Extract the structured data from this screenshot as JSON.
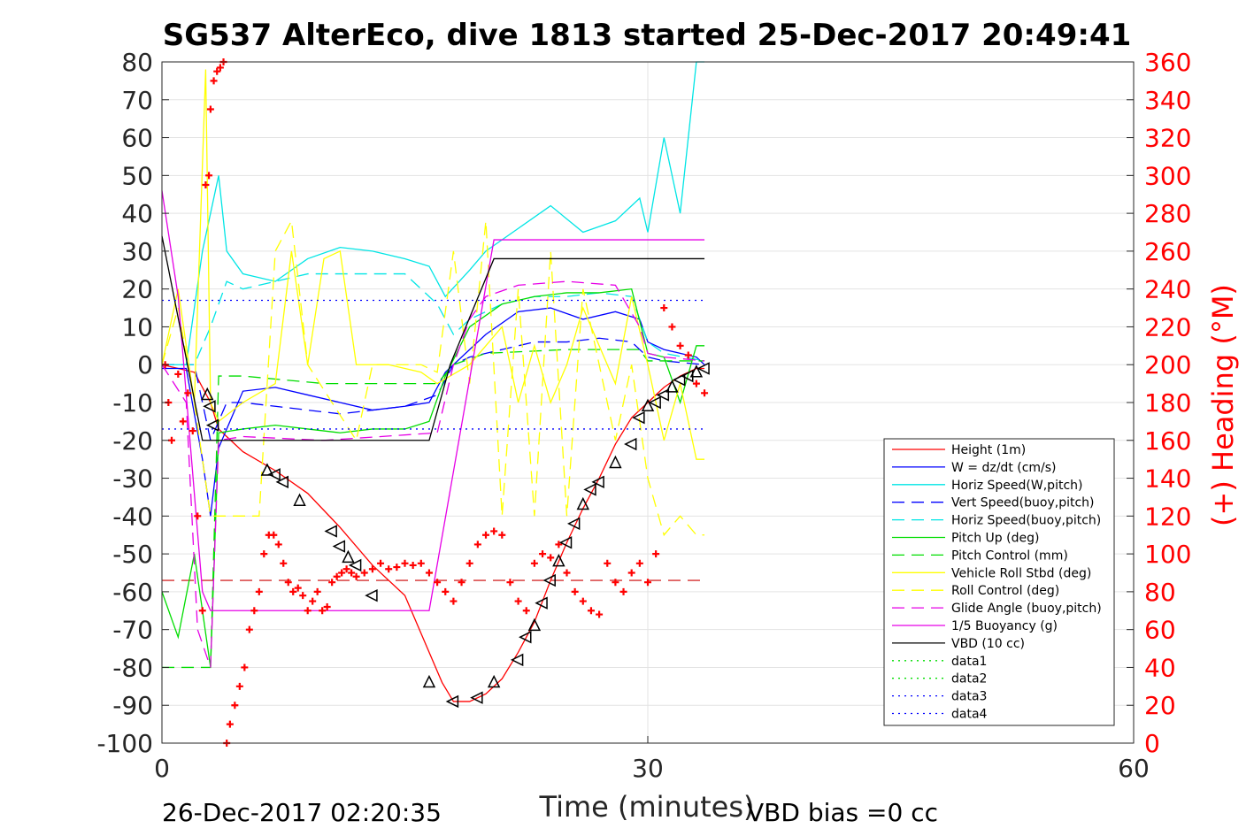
{
  "chart_data": {
    "type": "line",
    "title": "SG537 AlterEco, dive 1813 started 25-Dec-2017 20:49:41",
    "xlabel": "Time (minutes)",
    "ylabel_right": "(+) Heading (°M)",
    "xlim": [
      0,
      60
    ],
    "ylim_left": [
      -100,
      80
    ],
    "ylim_right": [
      0,
      360
    ],
    "x_ticks": [
      0,
      30,
      60
    ],
    "y_ticks_left": [
      80,
      70,
      60,
      50,
      40,
      30,
      20,
      10,
      0,
      -10,
      -20,
      -30,
      -40,
      -50,
      -60,
      -70,
      -80,
      -90,
      -100
    ],
    "y_ticks_right": [
      360,
      340,
      320,
      300,
      280,
      260,
      240,
      220,
      200,
      180,
      160,
      140,
      120,
      100,
      80,
      60,
      40,
      20,
      0
    ],
    "grid": true,
    "legend_position": "bottom-right",
    "colors": {
      "red": "#ff0000",
      "blue": "#0000ff",
      "cyan": "#00e5e5",
      "green": "#00dd00",
      "yellow": "#ffff00",
      "magenta": "#e600e6",
      "black": "#000000",
      "axis": "#262626"
    },
    "series": [
      {
        "name": "Height (1m)",
        "color": "#ff0000",
        "style": "solid",
        "x": [
          0,
          1,
          2,
          3,
          3.5,
          5,
          7,
          9,
          11,
          13,
          15,
          16,
          17.3,
          18,
          19,
          20,
          21,
          22,
          23,
          24,
          25,
          26,
          27,
          28,
          29,
          30,
          31,
          32,
          33,
          33.5
        ],
        "y": [
          0,
          -1,
          -2,
          -10,
          -17,
          -23,
          -28,
          -34,
          -43,
          -53,
          -61,
          -71,
          -84,
          -89,
          -89,
          -87,
          -83,
          -76,
          -68,
          -57,
          -47,
          -38,
          -30,
          -21,
          -14,
          -10,
          -6,
          -3,
          -1,
          -1
        ]
      },
      {
        "name": "W = dz/dt (cm/s)",
        "color": "#0000ff",
        "style": "solid",
        "x": [
          0,
          1.5,
          2.5,
          3.0,
          3.5,
          5,
          7,
          9,
          11,
          13,
          15,
          16.5,
          17.5,
          19,
          20,
          22,
          24,
          26,
          28,
          29.5,
          30,
          31,
          32,
          33,
          33.5
        ],
        "y": [
          -1,
          -1,
          -25,
          -40,
          -22,
          -7,
          -6,
          -8,
          -10,
          -12,
          -11,
          -10,
          -2,
          4,
          8,
          14,
          15,
          12,
          14,
          12,
          6,
          4,
          3,
          2,
          0
        ]
      },
      {
        "name": "Horiz Speed(W,pitch)",
        "color": "#00e5e5",
        "style": "solid",
        "x": [
          0,
          1.5,
          2.5,
          3.5,
          4,
          5,
          7,
          9,
          11,
          13,
          15,
          16.5,
          17.5,
          19,
          20,
          22,
          24,
          26,
          28,
          29.5,
          30,
          31,
          32,
          33,
          33.5
        ],
        "y": [
          0,
          0,
          30,
          50,
          30,
          24,
          22,
          28,
          31,
          30,
          28,
          26,
          18,
          25,
          30,
          36,
          42,
          35,
          38,
          44,
          35,
          60,
          40,
          80,
          80
        ]
      },
      {
        "name": "Vert Speed(buoy,pitch)",
        "color": "#0000ff",
        "style": "dashed",
        "x": [
          0,
          2,
          3,
          4,
          5,
          7,
          9,
          11,
          13,
          15,
          17,
          18,
          19,
          21,
          23,
          25,
          27,
          29,
          30,
          31,
          33.5
        ],
        "y": [
          0,
          0,
          -20,
          -10,
          -10,
          -11,
          -12,
          -13,
          -12,
          -11,
          -8,
          0,
          2,
          4,
          6,
          6,
          7,
          6,
          2,
          1,
          0
        ]
      },
      {
        "name": "Horiz Speed(buoy,pitch)",
        "color": "#00e5e5",
        "style": "dashed",
        "x": [
          0,
          2,
          3,
          4,
          5,
          7,
          9,
          11,
          13,
          15,
          17,
          18,
          19,
          21,
          23,
          25,
          27,
          29,
          30,
          31,
          33.5
        ],
        "y": [
          0,
          0,
          10,
          22,
          20,
          22,
          24,
          24,
          24,
          24,
          16,
          8,
          12,
          16,
          18,
          18,
          19,
          18,
          6,
          3,
          1
        ]
      },
      {
        "name": "Pitch Up (deg)",
        "color": "#00dd00",
        "style": "solid",
        "x": [
          0,
          1,
          2,
          3,
          3.5,
          5,
          7,
          9,
          11,
          13,
          15,
          16.5,
          17.5,
          19,
          21,
          23,
          25,
          27,
          29,
          30,
          31,
          32,
          33,
          33.5
        ],
        "y": [
          -60,
          -72,
          -50,
          -80,
          -18,
          -17,
          -16,
          -17,
          -18,
          -17,
          -17,
          -15,
          -3,
          10,
          16,
          18,
          19,
          19,
          20,
          3,
          2,
          -10,
          5,
          5
        ]
      },
      {
        "name": "Pitch Control (mm)",
        "color": "#00dd00",
        "style": "dashed",
        "x": [
          0,
          1.5,
          3,
          3.5,
          5,
          10,
          17,
          18,
          20,
          25,
          29.5,
          30,
          33.5
        ],
        "y": [
          -80,
          -80,
          -80,
          -3,
          -3,
          -5,
          -5,
          0,
          3,
          4,
          4,
          1,
          1
        ]
      },
      {
        "name": "Vehicle Roll Stbd (deg)",
        "color": "#ffff00",
        "style": "solid",
        "x": [
          0,
          1,
          2,
          2.7,
          3,
          3.5,
          5,
          7,
          8,
          9,
          10,
          11,
          12,
          13,
          14,
          16,
          17,
          19,
          21,
          22,
          23,
          24,
          25,
          26,
          27,
          28,
          29,
          30,
          31,
          32,
          33,
          33.5
        ],
        "y": [
          0,
          20,
          -10,
          78,
          -10,
          -15,
          -10,
          -5,
          30,
          0,
          28,
          30,
          0,
          0,
          0,
          -2,
          -5,
          0,
          10,
          -10,
          5,
          -10,
          0,
          15,
          5,
          -5,
          18,
          0,
          -20,
          -5,
          -25,
          -25
        ]
      },
      {
        "name": "Roll Control (deg)",
        "color": "#ffff00",
        "style": "dashed",
        "x": [
          0,
          1,
          2,
          3,
          5,
          6,
          7,
          8,
          9,
          12,
          13,
          16,
          17,
          18,
          19,
          20,
          21,
          22,
          23,
          24,
          25,
          26,
          28,
          29,
          30,
          31,
          32,
          33,
          33.5
        ],
        "y": [
          0,
          15,
          -10,
          -40,
          -40,
          -40,
          30,
          38,
          0,
          -20,
          0,
          0,
          -2,
          30,
          -5,
          38,
          -40,
          20,
          -40,
          30,
          -40,
          20,
          -20,
          0,
          -30,
          -45,
          -40,
          -45,
          -45
        ]
      },
      {
        "name": "Glide Angle (buoy,pitch)",
        "color": "#e600e6",
        "style": "dashed",
        "x": [
          0,
          1.5,
          2.2,
          3,
          3.5,
          5,
          10,
          17,
          18,
          19,
          20,
          22,
          25,
          28,
          29.5,
          30,
          31,
          33.5
        ],
        "y": [
          0,
          -10,
          -70,
          -80,
          -20,
          -19,
          -20,
          -18,
          0,
          12,
          18,
          21,
          22,
          21,
          10,
          3,
          2,
          1
        ]
      },
      {
        "name": "1/5 Buoyancy (g)",
        "color": "#e600e6",
        "style": "solid",
        "x": [
          0,
          1,
          2.5,
          3,
          16.5,
          20.5,
          33.5
        ],
        "y": [
          46,
          18,
          -60,
          -65,
          -65,
          33,
          33
        ]
      },
      {
        "name": "VBD (10 cc)",
        "color": "#000000",
        "style": "solid",
        "x": [
          0,
          2.5,
          3,
          5,
          16.5,
          17.8,
          20.5,
          33.5
        ],
        "y": [
          34,
          -20,
          -20,
          -20,
          -20,
          0,
          28,
          28
        ]
      },
      {
        "name": "data1",
        "color": "#00dd00",
        "style": "dotted",
        "x": [],
        "y": []
      },
      {
        "name": "data2",
        "color": "#00dd00",
        "style": "dotted",
        "x": [],
        "y": []
      },
      {
        "name": "data3",
        "color": "#0000ff",
        "style": "dotted",
        "x": [
          0,
          33.5
        ],
        "y": [
          17,
          17
        ]
      },
      {
        "name": "data4",
        "color": "#0000ff",
        "style": "dotted",
        "x": [
          0,
          33.5
        ],
        "y": [
          -17,
          -17
        ]
      }
    ],
    "reference_lines": [
      {
        "color": "#cc0000",
        "style": "dashed",
        "x": [
          0,
          33.5
        ],
        "y": [
          -57,
          -57
        ]
      }
    ],
    "heading_markers": {
      "axis": "right",
      "color": "#ff0000",
      "marker": "+",
      "x": [
        0.2,
        0.4,
        0.6,
        1.0,
        1.3,
        1.6,
        1.9,
        2.2,
        2.5,
        2.7,
        2.9,
        3.0,
        3.2,
        3.4,
        3.6,
        3.8,
        4.0,
        4.2,
        4.5,
        4.8,
        5.1,
        5.4,
        5.7,
        6.0,
        6.3,
        6.6,
        6.9,
        7.2,
        7.5,
        7.8,
        8.1,
        8.4,
        8.7,
        9.0,
        9.3,
        9.6,
        9.9,
        10.2,
        10.5,
        10.8,
        11.1,
        11.4,
        11.7,
        12.0,
        12.5,
        13.0,
        13.5,
        14.0,
        14.5,
        15.0,
        15.5,
        16.0,
        16.5,
        17.0,
        17.5,
        18.0,
        18.5,
        19.0,
        19.5,
        20.0,
        20.5,
        21.0,
        21.5,
        22.0,
        22.5,
        23.0,
        23.5,
        24.0,
        24.5,
        25.0,
        25.5,
        26.0,
        26.5,
        27.0,
        27.5,
        28.0,
        28.5,
        29.0,
        29.5,
        30.0,
        30.5,
        31.0,
        31.5,
        32.0,
        32.5,
        33.0,
        33.5
      ],
      "y": [
        200,
        180,
        160,
        195,
        170,
        185,
        165,
        120,
        70,
        295,
        300,
        335,
        350,
        355,
        357,
        360,
        0,
        10,
        20,
        30,
        40,
        60,
        70,
        80,
        100,
        110,
        110,
        105,
        95,
        85,
        80,
        82,
        78,
        70,
        75,
        80,
        70,
        72,
        85,
        88,
        90,
        92,
        90,
        88,
        90,
        92,
        95,
        92,
        93,
        95,
        94,
        95,
        90,
        85,
        80,
        75,
        85,
        95,
        105,
        110,
        112,
        110,
        85,
        75,
        70,
        95,
        100,
        98,
        105,
        90,
        80,
        75,
        70,
        68,
        95,
        85,
        80,
        90,
        95,
        85,
        100,
        230,
        220,
        210,
        205,
        190,
        185
      ]
    },
    "triangle_markers": {
      "color": "#000000",
      "x": [
        2.8,
        3.0,
        3.2,
        6.5,
        7.0,
        7.5,
        8.5,
        10.5,
        11.0,
        11.5,
        12.0,
        13.0,
        16.5,
        18.0,
        19.5,
        20.5,
        22.0,
        22.5,
        23.0,
        23.5,
        24.0,
        24.5,
        25.0,
        25.5,
        26.0,
        26.5,
        27.0,
        28.0,
        29.0,
        29.5,
        30.0,
        30.5,
        31.0,
        31.5,
        32.0,
        32.5,
        33.0,
        33.5
      ],
      "y": [
        -8,
        -11,
        -16,
        -28,
        -29,
        -31,
        -36,
        -44,
        -48,
        -51,
        -53,
        -61,
        -84,
        -89,
        -88,
        -84,
        -78,
        -72,
        -69,
        -63,
        -57,
        -52,
        -47,
        -42,
        -37,
        -33,
        -31,
        -26,
        -21,
        -14,
        -11,
        -10,
        -8,
        -6,
        -4,
        -3,
        -2,
        -1
      ]
    },
    "legend": [
      "Height (1m)",
      "W = dz/dt (cm/s)",
      "Horiz Speed(W,pitch)",
      "Vert Speed(buoy,pitch)",
      "Horiz Speed(buoy,pitch)",
      "Pitch Up (deg)",
      "Pitch Control (mm)",
      "Vehicle Roll Stbd (deg)",
      "Roll Control (deg)",
      "Glide Angle (buoy,pitch)",
      "1/5 Buoyancy (g)",
      "VBD (10 cc)",
      "data1",
      "data2",
      "data3",
      "data4"
    ]
  },
  "footer": {
    "timestamp": "26-Dec-2017 02:20:35",
    "vbd_bias": "VBD bias =0 cc"
  }
}
